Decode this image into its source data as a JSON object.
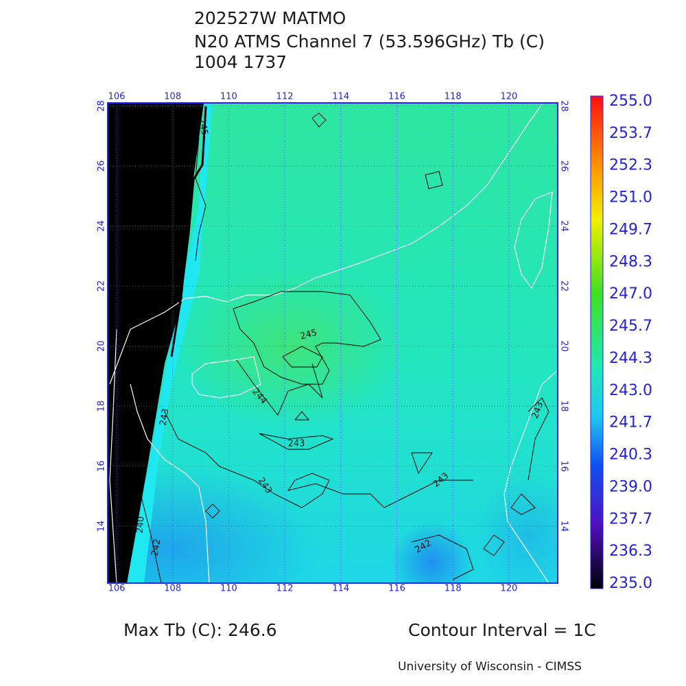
{
  "header": {
    "lines": [
      "202527W MATMO",
      "N20 ATMS Channel 7 (53.596GHz) Tb (C)",
      "1004 1737"
    ]
  },
  "map": {
    "lon_ticks": [
      "106",
      "108",
      "110",
      "112",
      "114",
      "116",
      "118",
      "120"
    ],
    "lat_ticks": [
      "14",
      "16",
      "18",
      "20",
      "22",
      "24",
      "26",
      "28"
    ],
    "contour_labels": [
      "245",
      "244",
      "243",
      "243",
      "243",
      "243",
      "243",
      "242",
      "242",
      "240",
      "245"
    ]
  },
  "colorbar": {
    "labels": [
      "255.0",
      "253.7",
      "252.3",
      "251.0",
      "249.7",
      "248.3",
      "247.0",
      "245.7",
      "244.3",
      "243.0",
      "241.7",
      "240.3",
      "239.0",
      "237.7",
      "236.3",
      "235.0"
    ]
  },
  "footer": {
    "max_tb": "Max Tb (C): 246.6",
    "contour_interval": "Contour Interval = 1C",
    "credit": "University of Wisconsin - CIMSS"
  }
}
